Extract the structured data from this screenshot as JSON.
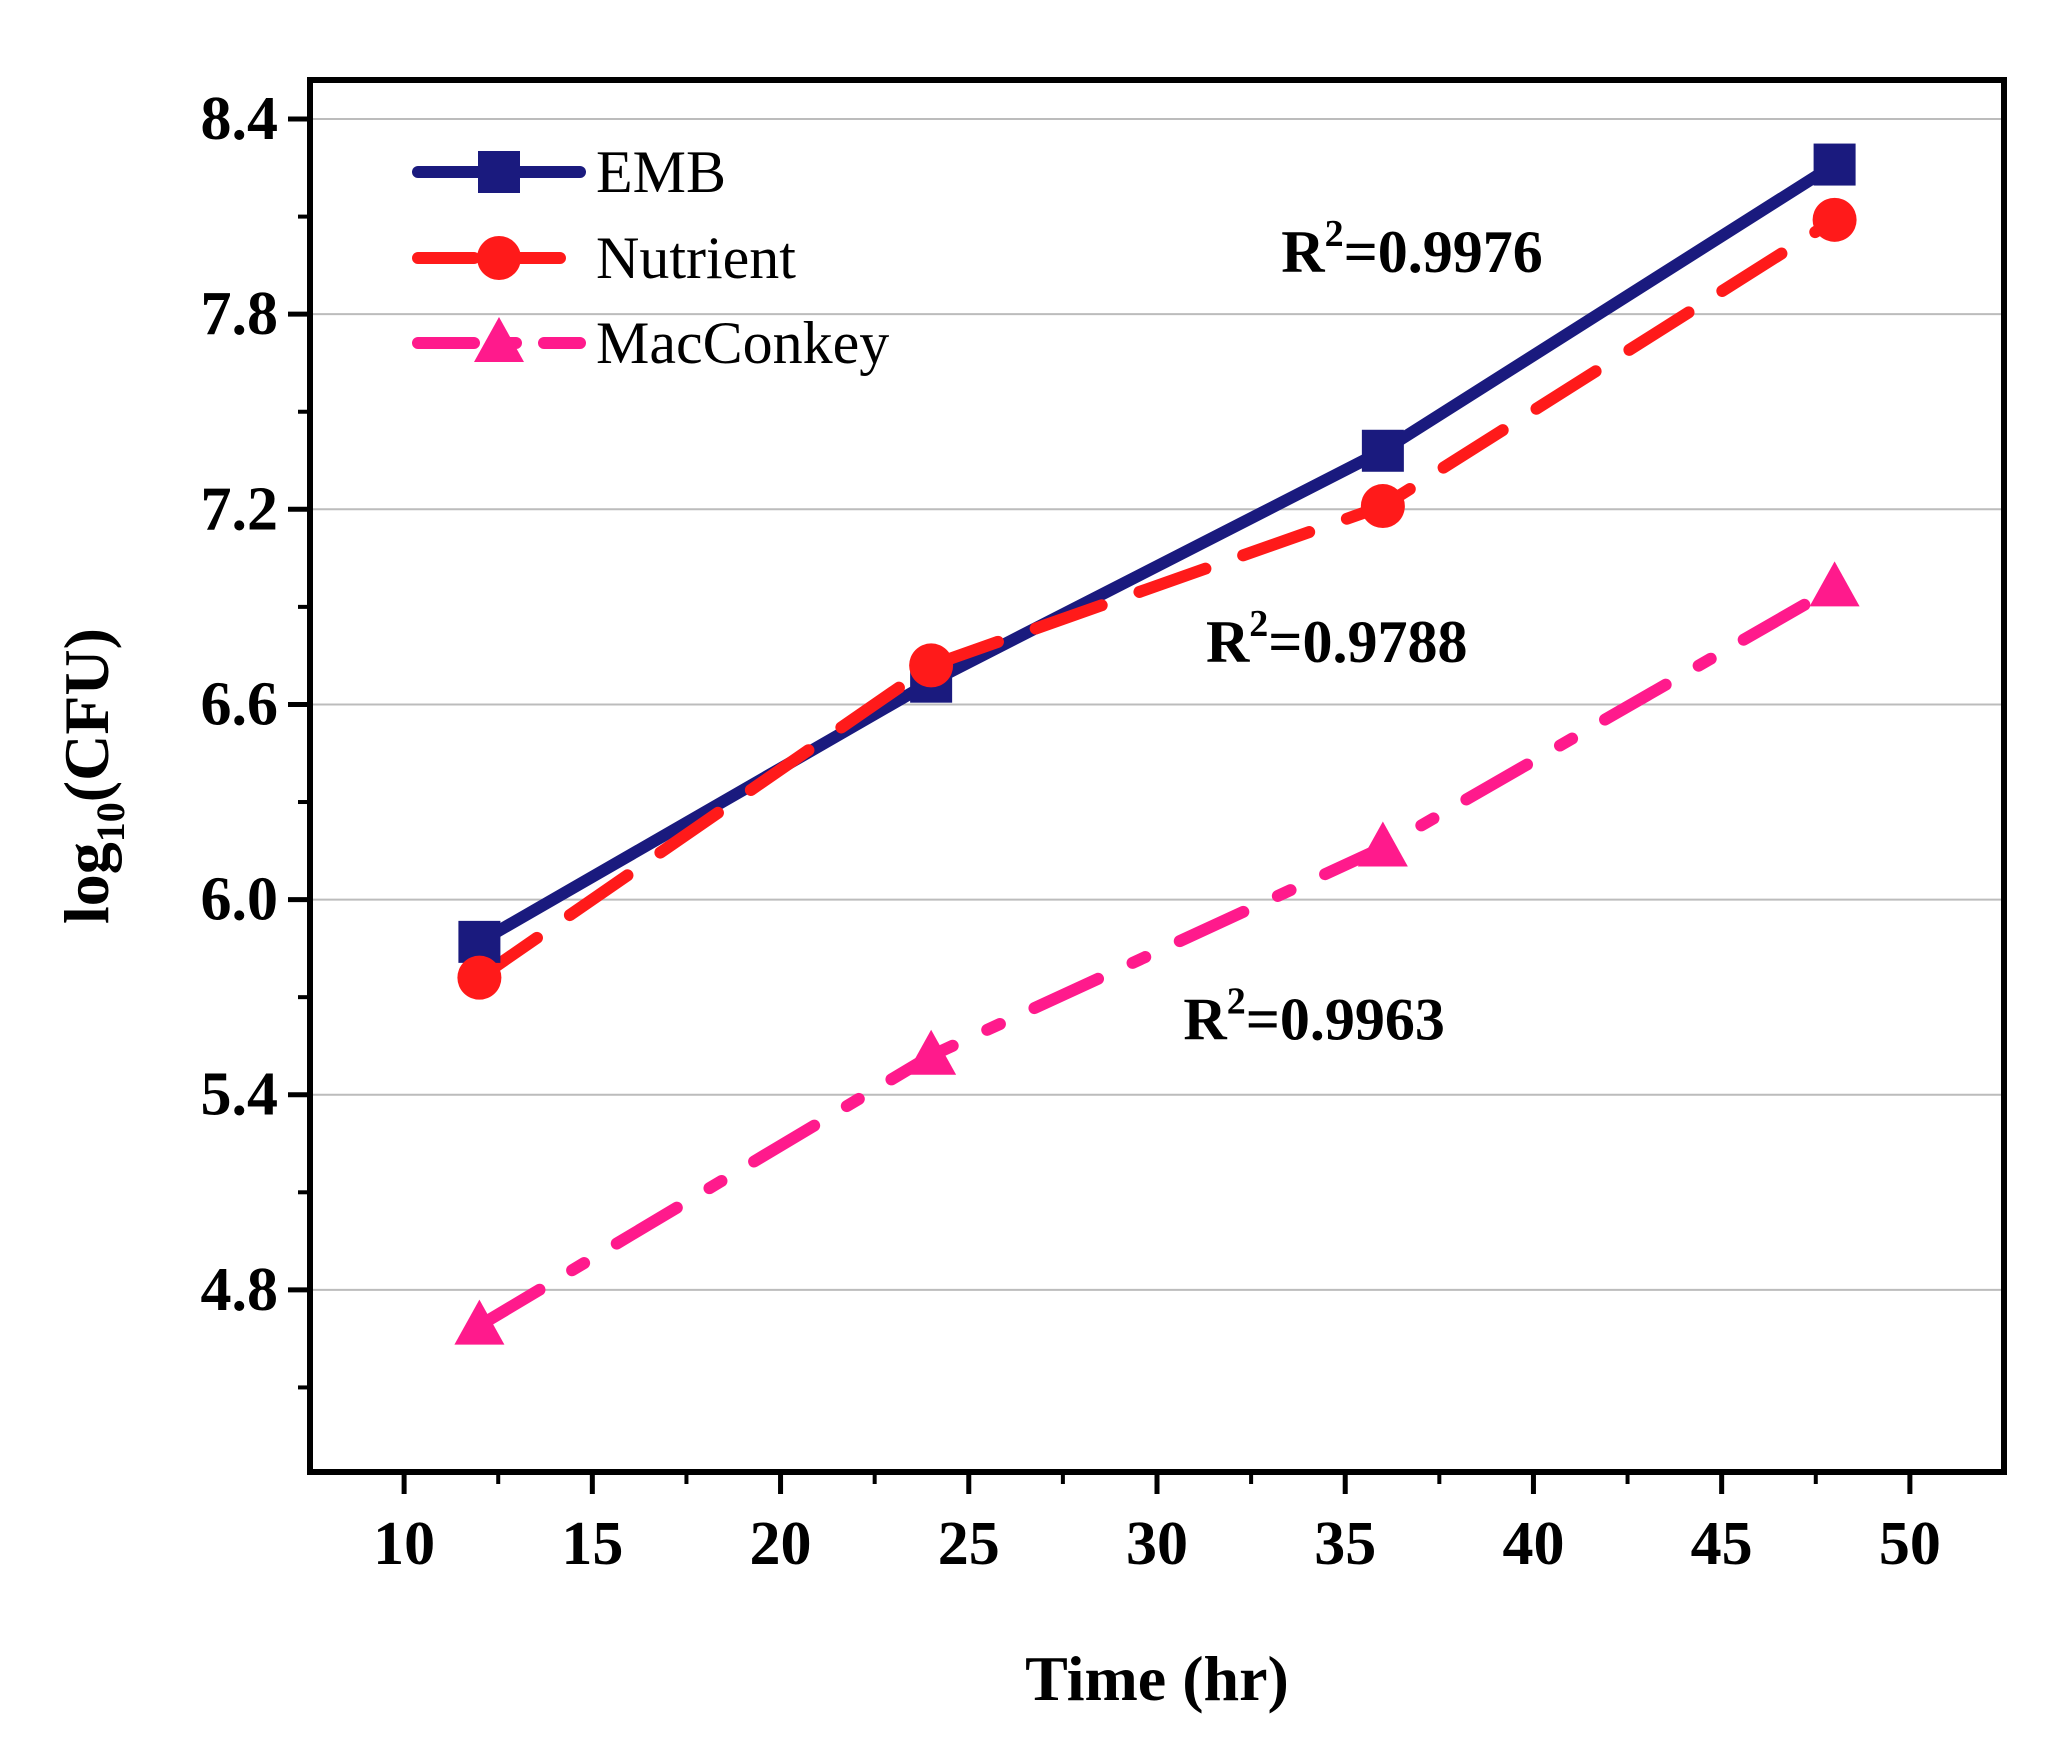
{
  "chart_data": {
    "type": "line",
    "title": "",
    "xlabel": "Time (hr)",
    "ylabel_main": "log",
    "ylabel_sub": "10",
    "ylabel_rest": "(CFU)",
    "xlim": [
      7.5,
      52.5
    ],
    "ylim": [
      4.24,
      8.52
    ],
    "x_ticks": [
      10,
      15,
      20,
      25,
      30,
      35,
      40,
      45,
      50
    ],
    "y_ticks": [
      4.8,
      5.4,
      6.0,
      6.6,
      7.2,
      7.8,
      8.4
    ],
    "x_tick_labels": [
      "10",
      "15",
      "20",
      "25",
      "30",
      "35",
      "40",
      "45",
      "50"
    ],
    "y_tick_labels": [
      "4.8",
      "5.4",
      "6.0",
      "6.6",
      "7.2",
      "7.8",
      "8.4"
    ],
    "grid": "horizontal",
    "legend_position": "top-left",
    "series": [
      {
        "name": "EMB",
        "x": [
          12,
          24,
          36,
          48
        ],
        "values": [
          5.87,
          6.67,
          7.38,
          8.26
        ],
        "color": "#1a1a7e",
        "marker": "square",
        "line_style": "solid"
      },
      {
        "name": "Nutrient",
        "x": [
          12,
          24,
          36,
          48
        ],
        "values": [
          5.76,
          6.72,
          7.21,
          8.09
        ],
        "color": "#ff1a1a",
        "marker": "circle",
        "line_style": "dashed"
      },
      {
        "name": "MacConkey",
        "x": [
          12,
          24,
          36,
          48
        ],
        "values": [
          4.69,
          5.52,
          6.16,
          6.96
        ],
        "color": "#ff1a8c",
        "marker": "triangle",
        "line_style": "dash-dot"
      }
    ],
    "annotations": [
      {
        "series": "Nutrient",
        "text_prefix": "R",
        "superscript": "2",
        "text_rest": "=0.9976",
        "x": 33.3,
        "y": 7.93
      },
      {
        "series": "EMB",
        "text_prefix": "R",
        "superscript": "2",
        "text_rest": "=0.9788",
        "x": 31.3,
        "y": 6.73
      },
      {
        "series": "MacConkey",
        "text_prefix": "R",
        "superscript": "2",
        "text_rest": "=0.9963",
        "x": 30.7,
        "y": 5.57
      }
    ]
  }
}
